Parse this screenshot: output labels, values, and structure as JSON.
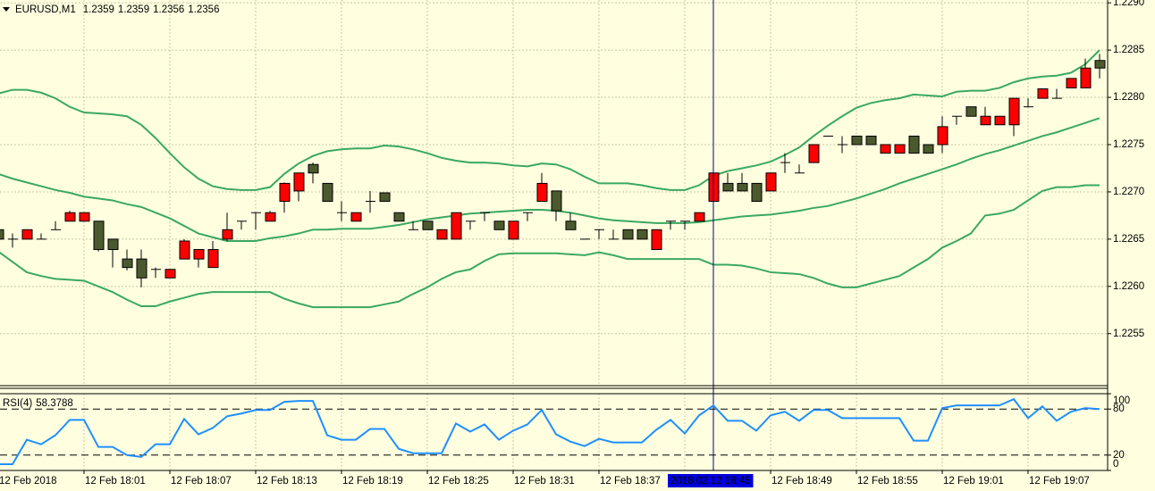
{
  "chart_data": [
    {
      "type": "candlestick",
      "symbol": "EURUSD,M1",
      "info": [
        1.2359,
        1.2359,
        1.2356,
        1.2356
      ],
      "up_color": "#ff0000",
      "down_color": "#4b5a2e",
      "grid": true,
      "crosshair_index": 50,
      "ylim": [
        1.22495,
        1.22903
      ],
      "yticks": [
        {
          "value": 1.229,
          "label": "1.2290"
        },
        1.2285,
        {
          "value": 1.228,
          "label": "1.2280"
        },
        1.2275,
        {
          "value": 1.227,
          "label": "1.2270"
        },
        1.2265,
        {
          "value": 1.226,
          "label": "1.2260"
        },
        1.2255
      ],
      "categories": [
        "12 Feb 2018",
        null,
        null,
        null,
        null,
        null,
        "12 Feb 18:01",
        null,
        null,
        null,
        null,
        null,
        "12 Feb 18:07",
        null,
        null,
        null,
        null,
        null,
        "12 Feb 18:13",
        null,
        null,
        null,
        null,
        null,
        "12 Feb 18:19",
        null,
        null,
        null,
        null,
        null,
        "12 Feb 18:25",
        null,
        null,
        null,
        null,
        null,
        "12 Feb 18:31",
        null,
        null,
        null,
        null,
        null,
        "12 Feb 18:37",
        null,
        null,
        null,
        null,
        null,
        null,
        null,
        "2018.02.12 18:45",
        null,
        null,
        null,
        "12 Feb 18:49",
        null,
        null,
        null,
        null,
        null,
        "12 Feb 18:55",
        null,
        null,
        null,
        null,
        null,
        "12 Feb 19:01",
        null,
        null,
        null,
        null,
        null,
        "12 Feb 19:07",
        null,
        null,
        null,
        null,
        null
      ],
      "open": [
        1.2266,
        1.2265,
        1.2265,
        1.2265,
        1.2266,
        1.22669,
        1.22669,
        1.22669,
        1.2265,
        1.22629,
        1.22629,
        1.22618,
        1.22609,
        1.22629,
        1.22629,
        1.2262,
        1.2265,
        1.22669,
        1.22678,
        1.22669,
        1.2269,
        1.22701,
        1.22729,
        1.22709,
        1.22678,
        1.22669,
        1.2269,
        1.22699,
        1.22678,
        1.2266,
        1.22669,
        1.2265,
        1.2265,
        1.22669,
        1.22678,
        1.22669,
        1.2265,
        1.22678,
        1.2269,
        1.22701,
        1.22669,
        1.2265,
        1.2266,
        1.2265,
        1.2266,
        1.2266,
        1.22639,
        1.22669,
        1.22669,
        1.22669,
        1.2269,
        1.22709,
        1.22709,
        1.22709,
        1.22701,
        1.22731,
        1.2272,
        1.22731,
        1.22759,
        1.2275,
        1.22759,
        1.22759,
        1.22741,
        1.22741,
        1.22759,
        1.2275,
        1.2275,
        1.2278,
        1.2279,
        1.22771,
        1.22771,
        1.22771,
        1.2279,
        1.22799,
        1.22799,
        1.2281,
        1.2281,
        1.22839
      ],
      "high": [
        1.22662,
        1.22656,
        1.2266,
        1.22656,
        1.22669,
        1.2268,
        1.22678,
        1.22669,
        1.2265,
        1.22639,
        1.22639,
        1.2262,
        1.22618,
        1.2265,
        1.22639,
        1.22648,
        1.22678,
        1.22669,
        1.22678,
        1.2268,
        1.2271,
        1.2272,
        1.22731,
        1.22709,
        1.2269,
        1.22678,
        1.22701,
        1.22699,
        1.22678,
        1.22669,
        1.22669,
        1.2266,
        1.22678,
        1.22669,
        1.22678,
        1.22669,
        1.22669,
        1.22678,
        1.2272,
        1.22701,
        1.22678,
        1.2265,
        1.2266,
        1.2266,
        1.2266,
        1.2266,
        1.2266,
        1.22669,
        1.22669,
        1.22678,
        1.2272,
        1.2272,
        1.2272,
        1.22709,
        1.2272,
        1.22741,
        1.22729,
        1.2275,
        1.22759,
        1.22759,
        1.22759,
        1.22759,
        1.2275,
        1.2275,
        1.22759,
        1.2275,
        1.2278,
        1.2278,
        1.2279,
        1.2279,
        1.2278,
        1.22799,
        1.22799,
        1.22809,
        1.22809,
        1.2282,
        1.22841,
        1.22846
      ],
      "low": [
        1.22648,
        1.22641,
        1.2265,
        1.2265,
        1.2266,
        1.22669,
        1.22669,
        1.22637,
        1.2262,
        1.22617,
        1.22599,
        1.22609,
        1.22609,
        1.22629,
        1.2262,
        1.2262,
        1.22648,
        1.2266,
        1.2266,
        1.22669,
        1.22678,
        1.2269,
        1.22709,
        1.2269,
        1.22669,
        1.22669,
        1.22678,
        1.2269,
        1.22669,
        1.2266,
        1.2266,
        1.2265,
        1.2265,
        1.2266,
        1.22669,
        1.2266,
        1.2265,
        1.22669,
        1.2269,
        1.22669,
        1.2266,
        1.2265,
        1.2265,
        1.2265,
        1.2265,
        1.2265,
        1.22639,
        1.2266,
        1.2266,
        1.22669,
        1.2269,
        1.22701,
        1.22701,
        1.2269,
        1.22701,
        1.2272,
        1.2272,
        1.22731,
        1.22759,
        1.22741,
        1.2275,
        1.2275,
        1.22741,
        1.22741,
        1.22741,
        1.22741,
        1.22741,
        1.22771,
        1.2278,
        1.22771,
        1.22771,
        1.22759,
        1.2279,
        1.22799,
        1.22799,
        1.2281,
        1.2281,
        1.2282
      ],
      "close": [
        1.2265,
        1.2265,
        1.2266,
        1.2265,
        1.2266,
        1.22678,
        1.22678,
        1.22639,
        1.22639,
        1.2262,
        1.22609,
        1.22618,
        1.22618,
        1.22648,
        1.22639,
        1.22639,
        1.2266,
        1.22669,
        1.22678,
        1.22678,
        1.22709,
        1.2272,
        1.2272,
        1.2269,
        1.22678,
        1.22678,
        1.2269,
        1.2269,
        1.22669,
        1.2266,
        1.2266,
        1.2266,
        1.22678,
        1.22669,
        1.22678,
        1.2266,
        1.22669,
        1.22678,
        1.22709,
        1.2268,
        1.2266,
        1.2265,
        1.2266,
        1.2265,
        1.2265,
        1.2265,
        1.2266,
        1.22669,
        1.22669,
        1.22678,
        1.2272,
        1.22701,
        1.22701,
        1.2269,
        1.2272,
        1.22731,
        1.2272,
        1.2275,
        1.22759,
        1.2275,
        1.2275,
        1.2275,
        1.2275,
        1.2275,
        1.22741,
        1.22741,
        1.22769,
        1.2278,
        1.2278,
        1.2278,
        1.2278,
        1.22799,
        1.2279,
        1.22809,
        1.22799,
        1.2282,
        1.22831,
        1.22831
      ],
      "bands": {
        "color": "#3aa860",
        "upper": [
          1.22804,
          1.22808,
          1.22808,
          1.22805,
          1.22799,
          1.2279,
          1.22784,
          1.22783,
          1.22782,
          1.2278,
          1.22771,
          1.22757,
          1.22741,
          1.22726,
          1.22714,
          1.22706,
          1.22703,
          1.22702,
          1.22702,
          1.22705,
          1.22719,
          1.2273,
          1.22738,
          1.22743,
          1.22745,
          1.22746,
          1.22746,
          1.22749,
          1.22748,
          1.22745,
          1.22741,
          1.22736,
          1.22733,
          1.22731,
          1.22731,
          1.2273,
          1.22728,
          1.22727,
          1.2273,
          1.22729,
          1.22724,
          1.22716,
          1.22709,
          1.22709,
          1.22709,
          1.22707,
          1.22704,
          1.22702,
          1.22702,
          1.22707,
          1.22717,
          1.22722,
          1.22725,
          1.22728,
          1.22732,
          1.22739,
          1.22747,
          1.22759,
          1.2277,
          1.2278,
          1.22789,
          1.22794,
          1.22797,
          1.22799,
          1.22803,
          1.22802,
          1.22801,
          1.22806,
          1.22807,
          1.22807,
          1.2281,
          1.22816,
          1.2282,
          1.22822,
          1.22823,
          1.22826,
          1.22835,
          1.2285
        ],
        "middle": [
          1.22719,
          1.22714,
          1.2271,
          1.22706,
          1.22702,
          1.22699,
          1.22695,
          1.22693,
          1.22691,
          1.22687,
          1.22684,
          1.22678,
          1.22672,
          1.22664,
          1.22656,
          1.22652,
          1.22648,
          1.22648,
          1.22648,
          1.22651,
          1.22653,
          1.22656,
          1.2266,
          1.2266,
          1.22661,
          1.22661,
          1.22661,
          1.22663,
          1.22665,
          1.22668,
          1.22671,
          1.22673,
          1.22675,
          1.22677,
          1.22678,
          1.22679,
          1.2268,
          1.22681,
          1.22681,
          1.2268,
          1.22678,
          1.22675,
          1.22672,
          1.2267,
          1.22669,
          1.22668,
          1.22667,
          1.22667,
          1.22667,
          1.22668,
          1.2267,
          1.22672,
          1.22674,
          1.22675,
          1.22676,
          1.22678,
          1.2268,
          1.22683,
          1.22685,
          1.22689,
          1.22693,
          1.22698,
          1.22703,
          1.22709,
          1.22714,
          1.22719,
          1.22724,
          1.22729,
          1.22735,
          1.2274,
          1.22744,
          1.22749,
          1.22754,
          1.22759,
          1.22763,
          1.22768,
          1.22773,
          1.22778
        ],
        "lower": [
          1.22637,
          1.22626,
          1.22615,
          1.22611,
          1.22608,
          1.22607,
          1.22606,
          1.226,
          1.22594,
          1.22586,
          1.22579,
          1.22579,
          1.22584,
          1.22588,
          1.22592,
          1.22594,
          1.22594,
          1.22594,
          1.22594,
          1.22594,
          1.22587,
          1.22582,
          1.22578,
          1.22578,
          1.22578,
          1.22578,
          1.22578,
          1.22581,
          1.22584,
          1.22592,
          1.22599,
          1.22608,
          1.22615,
          1.22618,
          1.22627,
          1.22634,
          1.22635,
          1.22635,
          1.22635,
          1.22635,
          1.22634,
          1.22633,
          1.22636,
          1.22633,
          1.22629,
          1.22629,
          1.22629,
          1.22629,
          1.22629,
          1.22629,
          1.22623,
          1.22623,
          1.22622,
          1.22619,
          1.22615,
          1.22614,
          1.22613,
          1.22609,
          1.22603,
          1.22599,
          1.22599,
          1.22603,
          1.22607,
          1.22611,
          1.2262,
          1.22629,
          1.22641,
          1.22648,
          1.22656,
          1.22675,
          1.22677,
          1.22681,
          1.22691,
          1.22701,
          1.22705,
          1.22705,
          1.22707,
          1.22707
        ]
      }
    },
    {
      "type": "line",
      "title": "RSI(4)",
      "value": 58.3788,
      "color": "#1e8fff",
      "ylim": [
        0,
        100
      ],
      "yticks": [
        100,
        80,
        20,
        0
      ],
      "levels": [
        80,
        20
      ],
      "values": [
        8.2,
        8.2,
        40.0,
        34.1,
        45.9,
        65.9,
        65.9,
        30.6,
        30.6,
        20.0,
        17.6,
        34.1,
        34.1,
        67.1,
        47.1,
        55.3,
        70.6,
        74.1,
        78.8,
        78.8,
        89.4,
        90.6,
        90.6,
        45.9,
        40.0,
        40.0,
        54.1,
        54.1,
        28.2,
        22.4,
        22.4,
        22.4,
        61.2,
        50.6,
        60.0,
        40.0,
        51.8,
        60.0,
        78.8,
        47.1,
        37.6,
        31.8,
        41.2,
        36.5,
        36.5,
        36.5,
        52.9,
        65.9,
        48.2,
        71.8,
        84.7,
        64.7,
        64.7,
        51.8,
        71.8,
        76.5,
        64.7,
        78.8,
        78.8,
        68.2,
        68.2,
        68.2,
        68.2,
        68.2,
        38.8,
        38.8,
        81.2,
        84.7,
        84.7,
        84.7,
        84.7,
        92.9,
        68.2,
        83.5,
        64.7,
        76.5,
        81.2,
        80.0
      ]
    }
  ]
}
